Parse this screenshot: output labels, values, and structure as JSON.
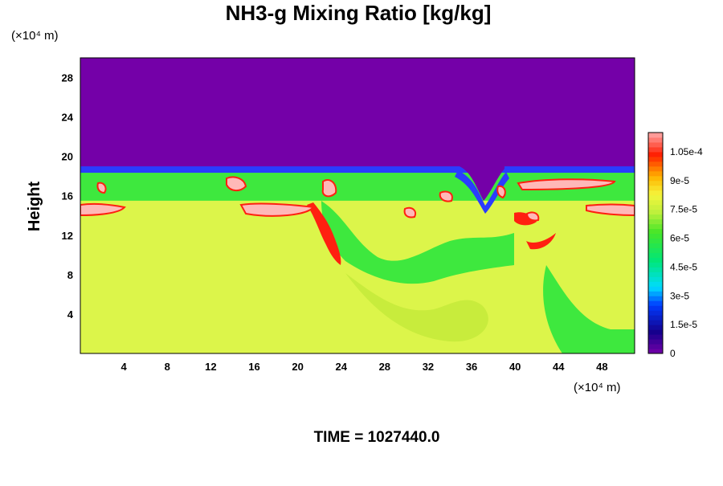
{
  "chart_data": {
    "type": "heatmap",
    "title": "NH3-g Mixing Ratio [kg/kg]",
    "ylabel": "Height",
    "y_unit": "(×10⁴ m)",
    "x_unit": "(×10⁴ m)",
    "xlim": [
      0,
      51
    ],
    "ylim": [
      0,
      30
    ],
    "x_ticks": [
      "4",
      "8",
      "12",
      "16",
      "20",
      "24",
      "28",
      "32",
      "36",
      "40",
      "44",
      "48"
    ],
    "x_tick_values": [
      4,
      8,
      12,
      16,
      20,
      24,
      28,
      32,
      36,
      40,
      44,
      48
    ],
    "y_ticks": [
      "4",
      "8",
      "12",
      "16",
      "20",
      "24",
      "28"
    ],
    "y_tick_values": [
      4,
      8,
      12,
      16,
      20,
      24,
      28
    ],
    "colorbar": {
      "min": 0,
      "max": 0.000115,
      "tick_labels": [
        "0",
        "1.5e-5",
        "3e-5",
        "4.5e-5",
        "6e-5",
        "7.5e-5",
        "9e-5",
        "1.05e-4"
      ],
      "tick_values": [
        0,
        1.5e-05,
        3e-05,
        4.5e-05,
        6e-05,
        7.5e-05,
        9e-05,
        0.000105
      ]
    },
    "field": {
      "upper_value": 0,
      "cloud_top_height": 18.5,
      "layer_value": 6e-05,
      "layer_base_height": 15.5,
      "lower_value": 8e-05,
      "lower_layer_top_height": 14.3
    },
    "time_label": "TIME = 1027440.0"
  },
  "colors": {
    "upper": "#7400a8",
    "cloud_edge": "#2a3cff",
    "layer": "#3ee83e",
    "max_patch": "#ffb8b8",
    "high": "#ff2010",
    "lower": "#dcf54a",
    "lower_alt": "#c8ec3c"
  }
}
